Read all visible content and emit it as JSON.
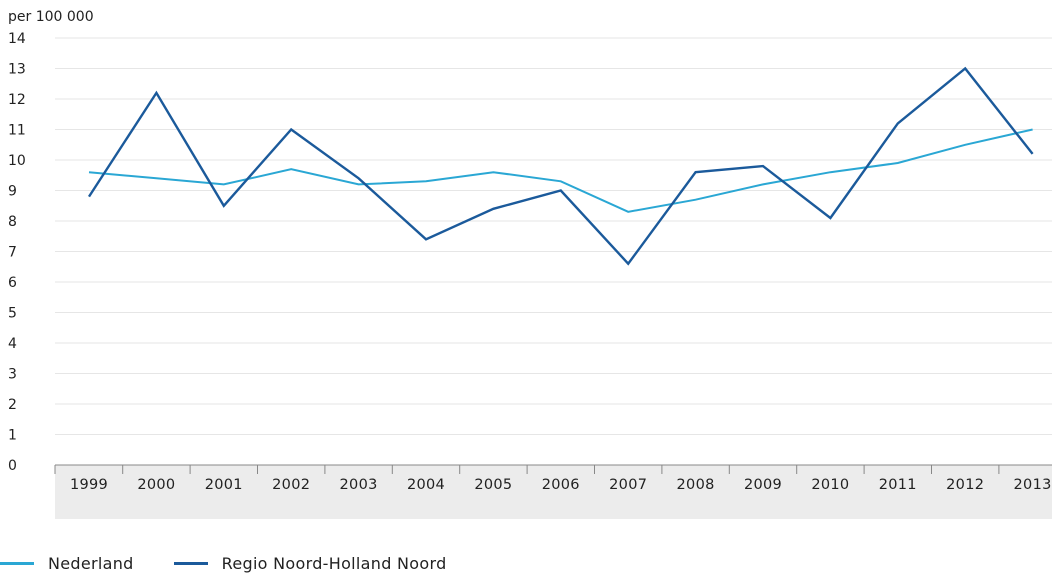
{
  "chart_data": {
    "type": "line",
    "unit_label": "per 100 000",
    "categories": [
      "1999",
      "2000",
      "2001",
      "2002",
      "2003",
      "2004",
      "2005",
      "2006",
      "2007",
      "2008",
      "2009",
      "2010",
      "2011",
      "2012",
      "2013"
    ],
    "series": [
      {
        "name": "Nederland",
        "color": "#2aa7d4",
        "values": [
          9.6,
          9.4,
          9.2,
          9.7,
          9.2,
          9.3,
          9.6,
          9.3,
          8.3,
          8.7,
          9.2,
          9.6,
          9.9,
          10.5,
          11.0
        ]
      },
      {
        "name": "Regio Noord-Holland Noord",
        "color": "#1b5a9b",
        "values": [
          8.8,
          12.2,
          8.5,
          11.0,
          9.4,
          7.4,
          8.4,
          9.0,
          6.6,
          9.6,
          9.8,
          8.1,
          11.2,
          13.0,
          10.2
        ]
      }
    ],
    "yticks": [
      0,
      1,
      2,
      3,
      4,
      5,
      6,
      7,
      8,
      9,
      10,
      11,
      12,
      13,
      14
    ],
    "ylim": [
      0,
      14
    ],
    "grid": true,
    "legend_position": "bottom-left"
  }
}
